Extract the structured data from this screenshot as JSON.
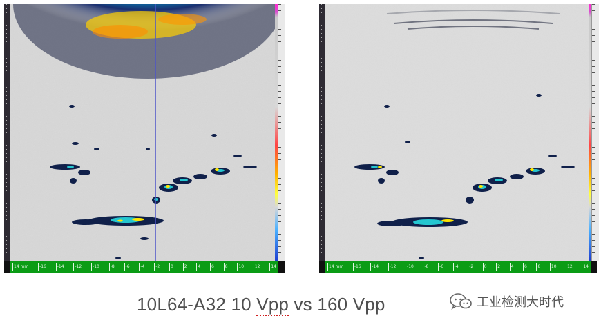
{
  "panels": [
    {
      "id": "left",
      "axis_labels": [
        "14 mm",
        "-16",
        "-14",
        "-12",
        "-10",
        "-8",
        "-6",
        "-4",
        "-2",
        "0",
        "2",
        "4",
        "6",
        "8",
        "10",
        "12",
        "14"
      ]
    },
    {
      "id": "right",
      "axis_labels": [
        "14 mm",
        "-16",
        "-14",
        "-12",
        "-10",
        "-8",
        "-6",
        "-4",
        "-2",
        "0",
        "2",
        "4",
        "6",
        "8",
        "10",
        "12",
        "14"
      ]
    }
  ],
  "caption": {
    "prefix": "10L64-A32 10 ",
    "underlined": "Vpp",
    "suffix": " vs 160 Vpp"
  },
  "watermark": {
    "text": "工业检测大时代",
    "icon": "wechat-icon"
  },
  "colors": {
    "scan_background": "#d9d9d9",
    "axis_bar": "#0b9c15",
    "cursor": "#4d54c8",
    "caption_text": "#4f4f4f"
  }
}
